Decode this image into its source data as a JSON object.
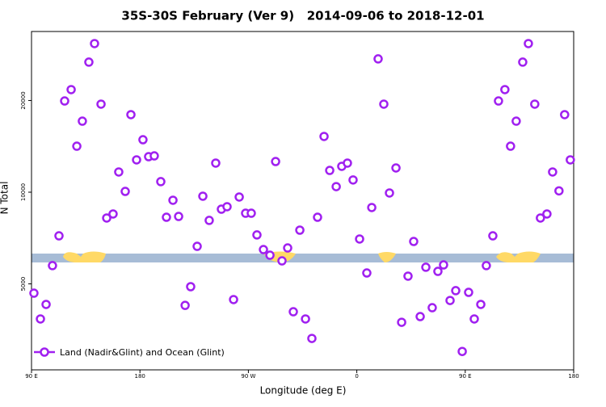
{
  "chart_data": {
    "type": "scatter",
    "title": "35S-30S February (Ver 9)   2014-09-06 to 2018-12-01",
    "x_label": "Longitude (deg E)",
    "y_label": "N Total",
    "log_y": true,
    "legend_position": "bottom-left",
    "xlim": [
      90,
      540
    ],
    "ylim": [
      2610,
      33700
    ],
    "xticks": [
      {
        "value": 90,
        "label": "90 E"
      },
      180,
      {
        "value": 270,
        "label": "90 W"
      },
      {
        "value": 360,
        "label": "0"
      },
      {
        "value": 450,
        "label": "90 E"
      },
      {
        "value": 540,
        "label": "180"
      }
    ],
    "yticks": [
      5000,
      10000,
      20000
    ],
    "series": [
      {
        "name": "Land (Nadir&Glint) and Ocean (Glint)",
        "color": "#a020f0",
        "x": [
          92.0,
          97.4,
          102.1,
          107.4,
          112.8,
          117.5,
          122.9,
          127.6,
          132.2,
          137.6,
          142.3,
          147.7,
          152.4,
          157.7,
          162.4,
          167.8,
          172.5,
          177.2,
          182.5,
          187.2,
          191.9,
          197.3,
          202.0,
          207.4,
          212.1,
          217.5,
          222.1,
          227.5,
          232.2,
          237.5,
          242.9,
          247.6,
          252.3,
          257.7,
          262.4,
          267.7,
          272.4,
          277.1,
          282.5,
          287.9,
          292.6,
          297.9,
          302.6,
          307.3,
          312.7,
          317.4,
          322.7,
          327.4,
          332.8,
          337.5,
          342.9,
          347.5,
          352.2,
          356.9,
          362.3,
          368.3,
          372.4,
          377.7,
          382.4,
          387.1,
          392.5,
          397.2,
          402.5,
          407.2,
          412.6,
          417.3,
          422.6,
          427.3,
          432.0,
          437.4,
          442.1,
          447.5,
          452.8,
          457.5,
          462.9,
          467.5,
          472.9,
          477.6,
          482.9,
          487.6,
          492.3,
          497.7,
          502.4,
          507.7,
          512.4,
          517.8,
          522.5,
          527.8,
          532.5,
          537.2
        ],
        "values": [
          4660,
          3835,
          4280,
          5740,
          7190,
          19930,
          21720,
          14160,
          17110,
          26740,
          30760,
          19460,
          8226,
          8480,
          11650,
          10060,
          17970,
          12770,
          14870,
          13080,
          13160,
          10830,
          8275,
          9410,
          8325,
          4250,
          4895,
          6640,
          9700,
          8080,
          12460,
          8795,
          8960,
          4440,
          9640,
          8530,
          8530,
          7240,
          6480,
          6210,
          12610,
          5950,
          6560,
          4050,
          7505,
          3835,
          3310,
          8275,
          15240,
          11790,
          10430,
          12160,
          12460,
          10970,
          7020,
          5430,
          8905,
          27400,
          19460,
          9940,
          12010,
          3740,
          5300,
          6890,
          3905,
          5670,
          4175,
          5495,
          5770,
          4410,
          4750,
          3000,
          4690,
          3835,
          4280,
          5740,
          7190,
          19930,
          21720,
          14160,
          17110,
          26740,
          30760,
          19460,
          8226,
          8480,
          11650,
          10100,
          17970,
          12770
        ]
      }
    ]
  }
}
